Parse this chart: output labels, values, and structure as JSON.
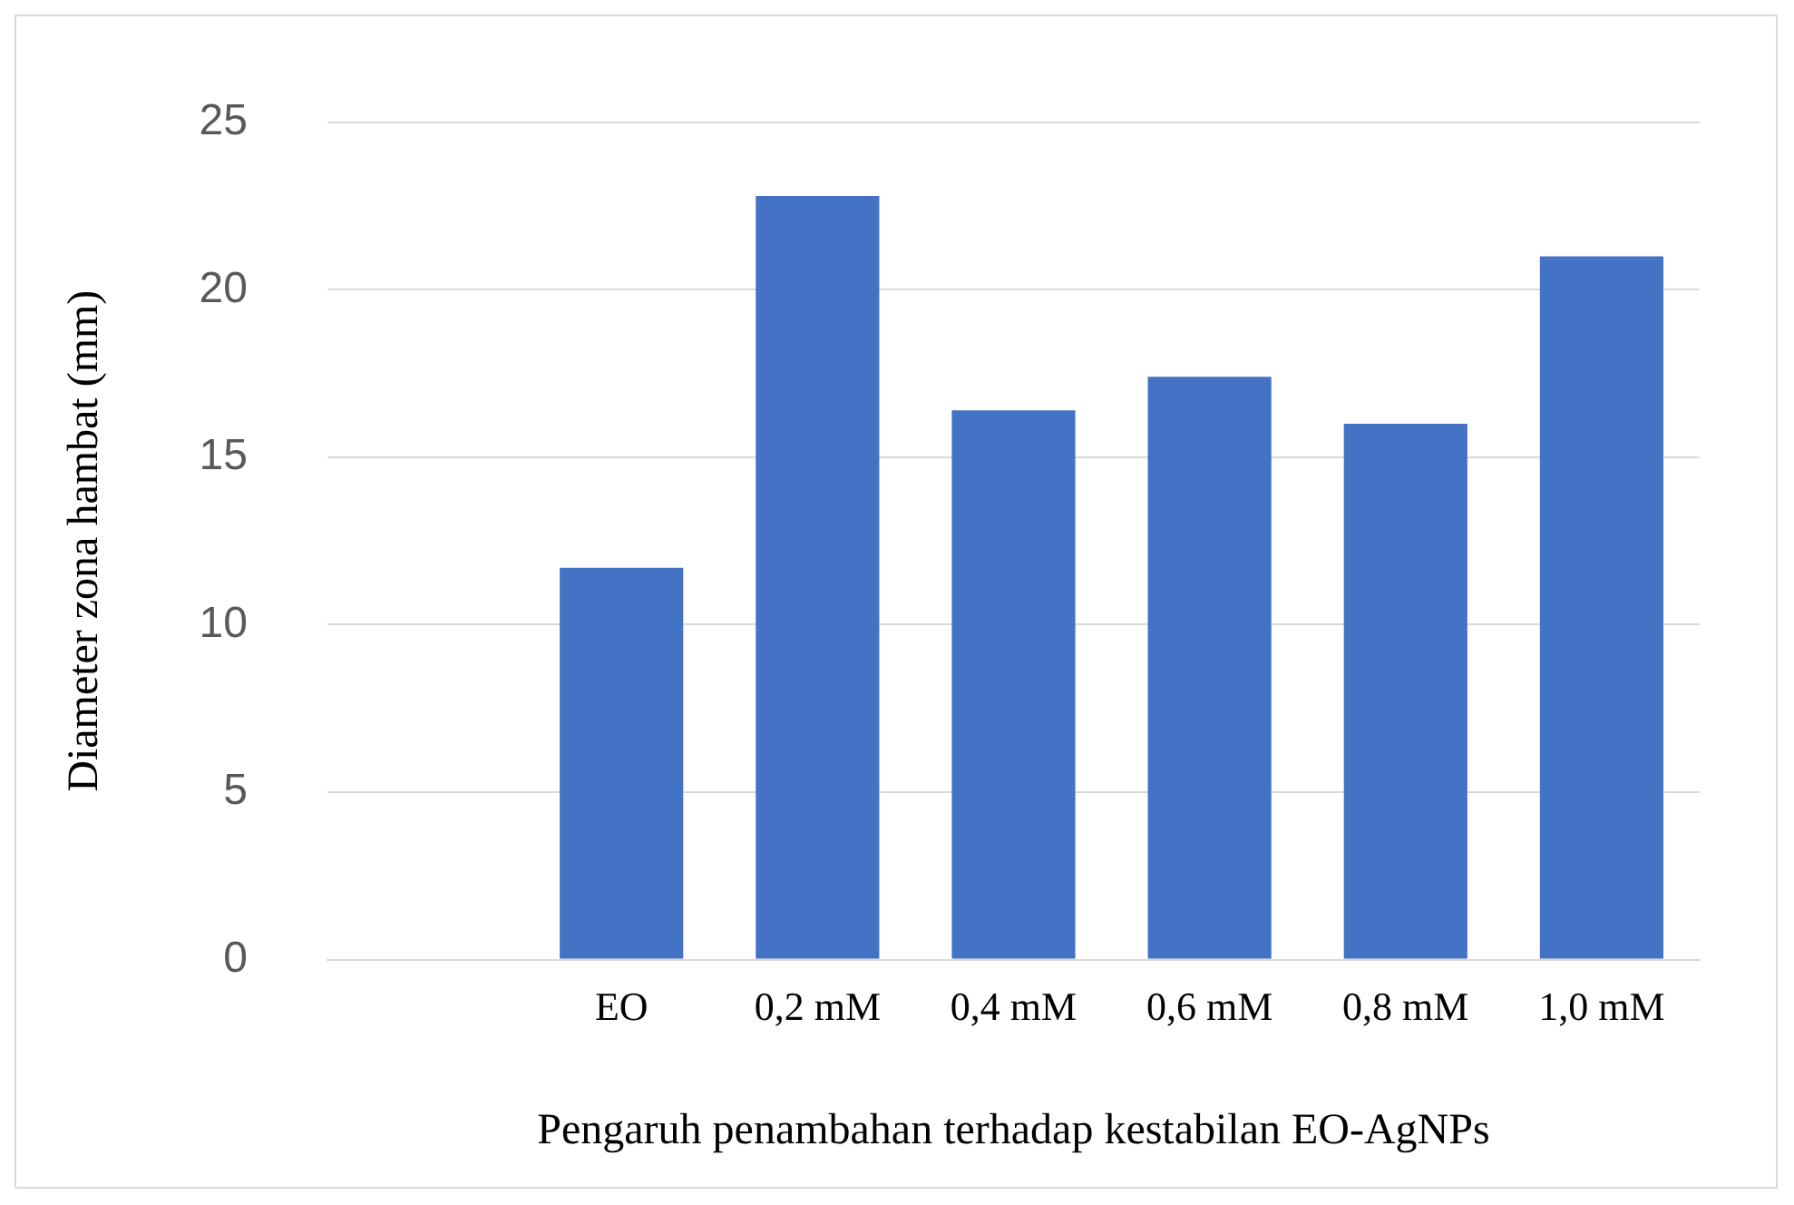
{
  "chart_data": {
    "type": "bar",
    "xlabel": "Pengaruh penambahan terhadap kestabilan EO-AgNPs",
    "ylabel": "Diameter zona hambat (mm)",
    "categories": [
      null,
      "EO",
      "0,2 mM",
      "0,4 mM",
      "0,6 mM",
      "0,8 mM",
      "1,0 mM"
    ],
    "values": [
      null,
      11.7,
      22.8,
      16.4,
      17.4,
      16.0,
      21.0
    ],
    "color": "#4472c4",
    "ylim": [
      0,
      25
    ],
    "yticks": [
      0,
      5,
      10,
      15,
      20,
      25
    ],
    "grid": "y",
    "legend": false
  }
}
